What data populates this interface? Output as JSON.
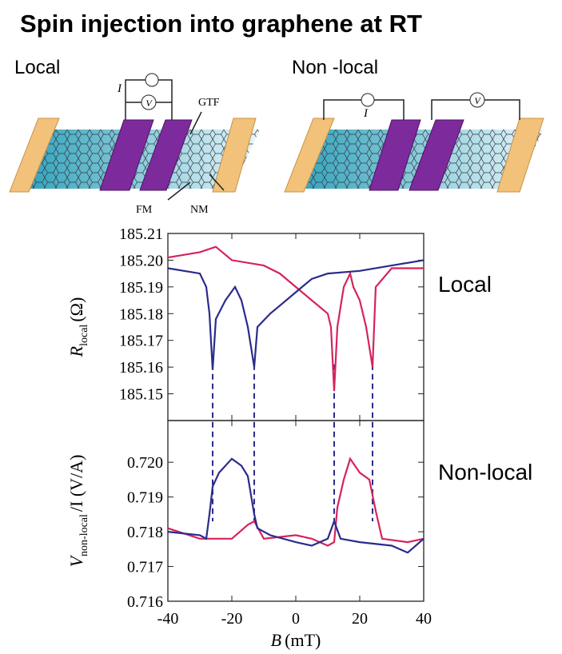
{
  "title": "Spin injection into graphene at RT",
  "diagrams": {
    "local": {
      "label": "Local",
      "current": "I",
      "voltage": "V",
      "gtf": "GTF",
      "fm": "FM",
      "nm": "NM"
    },
    "nonlocal": {
      "label": "Non -local",
      "current": "I",
      "voltage": "V"
    }
  },
  "side_labels": [
    "Local",
    "Non-local"
  ],
  "chart_data": [
    {
      "type": "line",
      "ylabel": "R",
      "ylabel_sub": "local",
      "ylabel_unit": "(Ω)",
      "xlim": [
        -40,
        40
      ],
      "xticks": [
        -40,
        -20,
        0,
        20,
        40
      ],
      "ylim": [
        185.14,
        185.21
      ],
      "yticks": [
        185.15,
        185.16,
        185.17,
        185.18,
        185.19,
        {
          "value": 185.2,
          "label": "185.20"
        },
        185.21
      ],
      "dashed_x": [
        -26,
        -13,
        12,
        24
      ],
      "series": [
        {
          "color": "#d6245a",
          "x": [
            -40,
            -30,
            -25,
            -20,
            -10,
            -5,
            0,
            5,
            10,
            11,
            12,
            13,
            15,
            17,
            18,
            20,
            22,
            24,
            25,
            30,
            40
          ],
          "values": [
            185.201,
            185.203,
            185.205,
            185.2,
            185.198,
            185.195,
            185.19,
            185.185,
            185.18,
            185.175,
            185.151,
            185.175,
            185.19,
            185.195,
            185.19,
            185.185,
            185.175,
            185.16,
            185.19,
            185.197,
            185.197
          ]
        },
        {
          "color": "#2b2b8c",
          "x": [
            -40,
            -30,
            -28,
            -27,
            -26,
            -25,
            -22,
            -19,
            -17,
            -15,
            -13,
            -12,
            -8,
            -5,
            0,
            5,
            10,
            20,
            30,
            40
          ],
          "values": [
            185.197,
            185.195,
            185.19,
            185.18,
            185.159,
            185.178,
            185.185,
            185.19,
            185.185,
            185.175,
            185.16,
            185.175,
            185.18,
            185.183,
            185.188,
            185.193,
            185.195,
            185.196,
            185.198,
            185.2
          ]
        }
      ]
    },
    {
      "type": "line",
      "ylabel": "V",
      "ylabel_sub": "non-local",
      "ylabel_unit": "/I (V/A)",
      "xlabel": "B",
      "xlabel_unit": "(mT)",
      "xlim": [
        -40,
        40
      ],
      "xticks": [
        -40,
        -20,
        0,
        20,
        40
      ],
      "ylim": [
        0.716,
        0.7212
      ],
      "yticks": [
        0.716,
        0.717,
        0.718,
        0.719,
        {
          "value": 0.72,
          "label": "0.720"
        }
      ],
      "series": [
        {
          "color": "#d6245a",
          "x": [
            -40,
            -30,
            -20,
            -15,
            -13,
            -10,
            0,
            5,
            10,
            12,
            13,
            15,
            17,
            20,
            23,
            25,
            27,
            35,
            40
          ],
          "values": [
            0.7181,
            0.7178,
            0.7178,
            0.7182,
            0.7183,
            0.7178,
            0.7179,
            0.7178,
            0.7176,
            0.7177,
            0.7187,
            0.7195,
            0.7201,
            0.7197,
            0.7195,
            0.7186,
            0.7178,
            0.7177,
            0.7178
          ]
        },
        {
          "color": "#2b2b8c",
          "x": [
            -40,
            -30,
            -28,
            -27,
            -26,
            -24,
            -20,
            -17,
            -15,
            -13,
            -12,
            -8,
            0,
            5,
            10,
            12,
            14,
            20,
            30,
            35,
            40
          ],
          "values": [
            0.718,
            0.7179,
            0.7178,
            0.7185,
            0.7193,
            0.7197,
            0.7201,
            0.7199,
            0.7196,
            0.7185,
            0.7181,
            0.7179,
            0.7177,
            0.7176,
            0.7178,
            0.7183,
            0.7178,
            0.7177,
            0.7176,
            0.7174,
            0.7178
          ]
        }
      ]
    }
  ]
}
